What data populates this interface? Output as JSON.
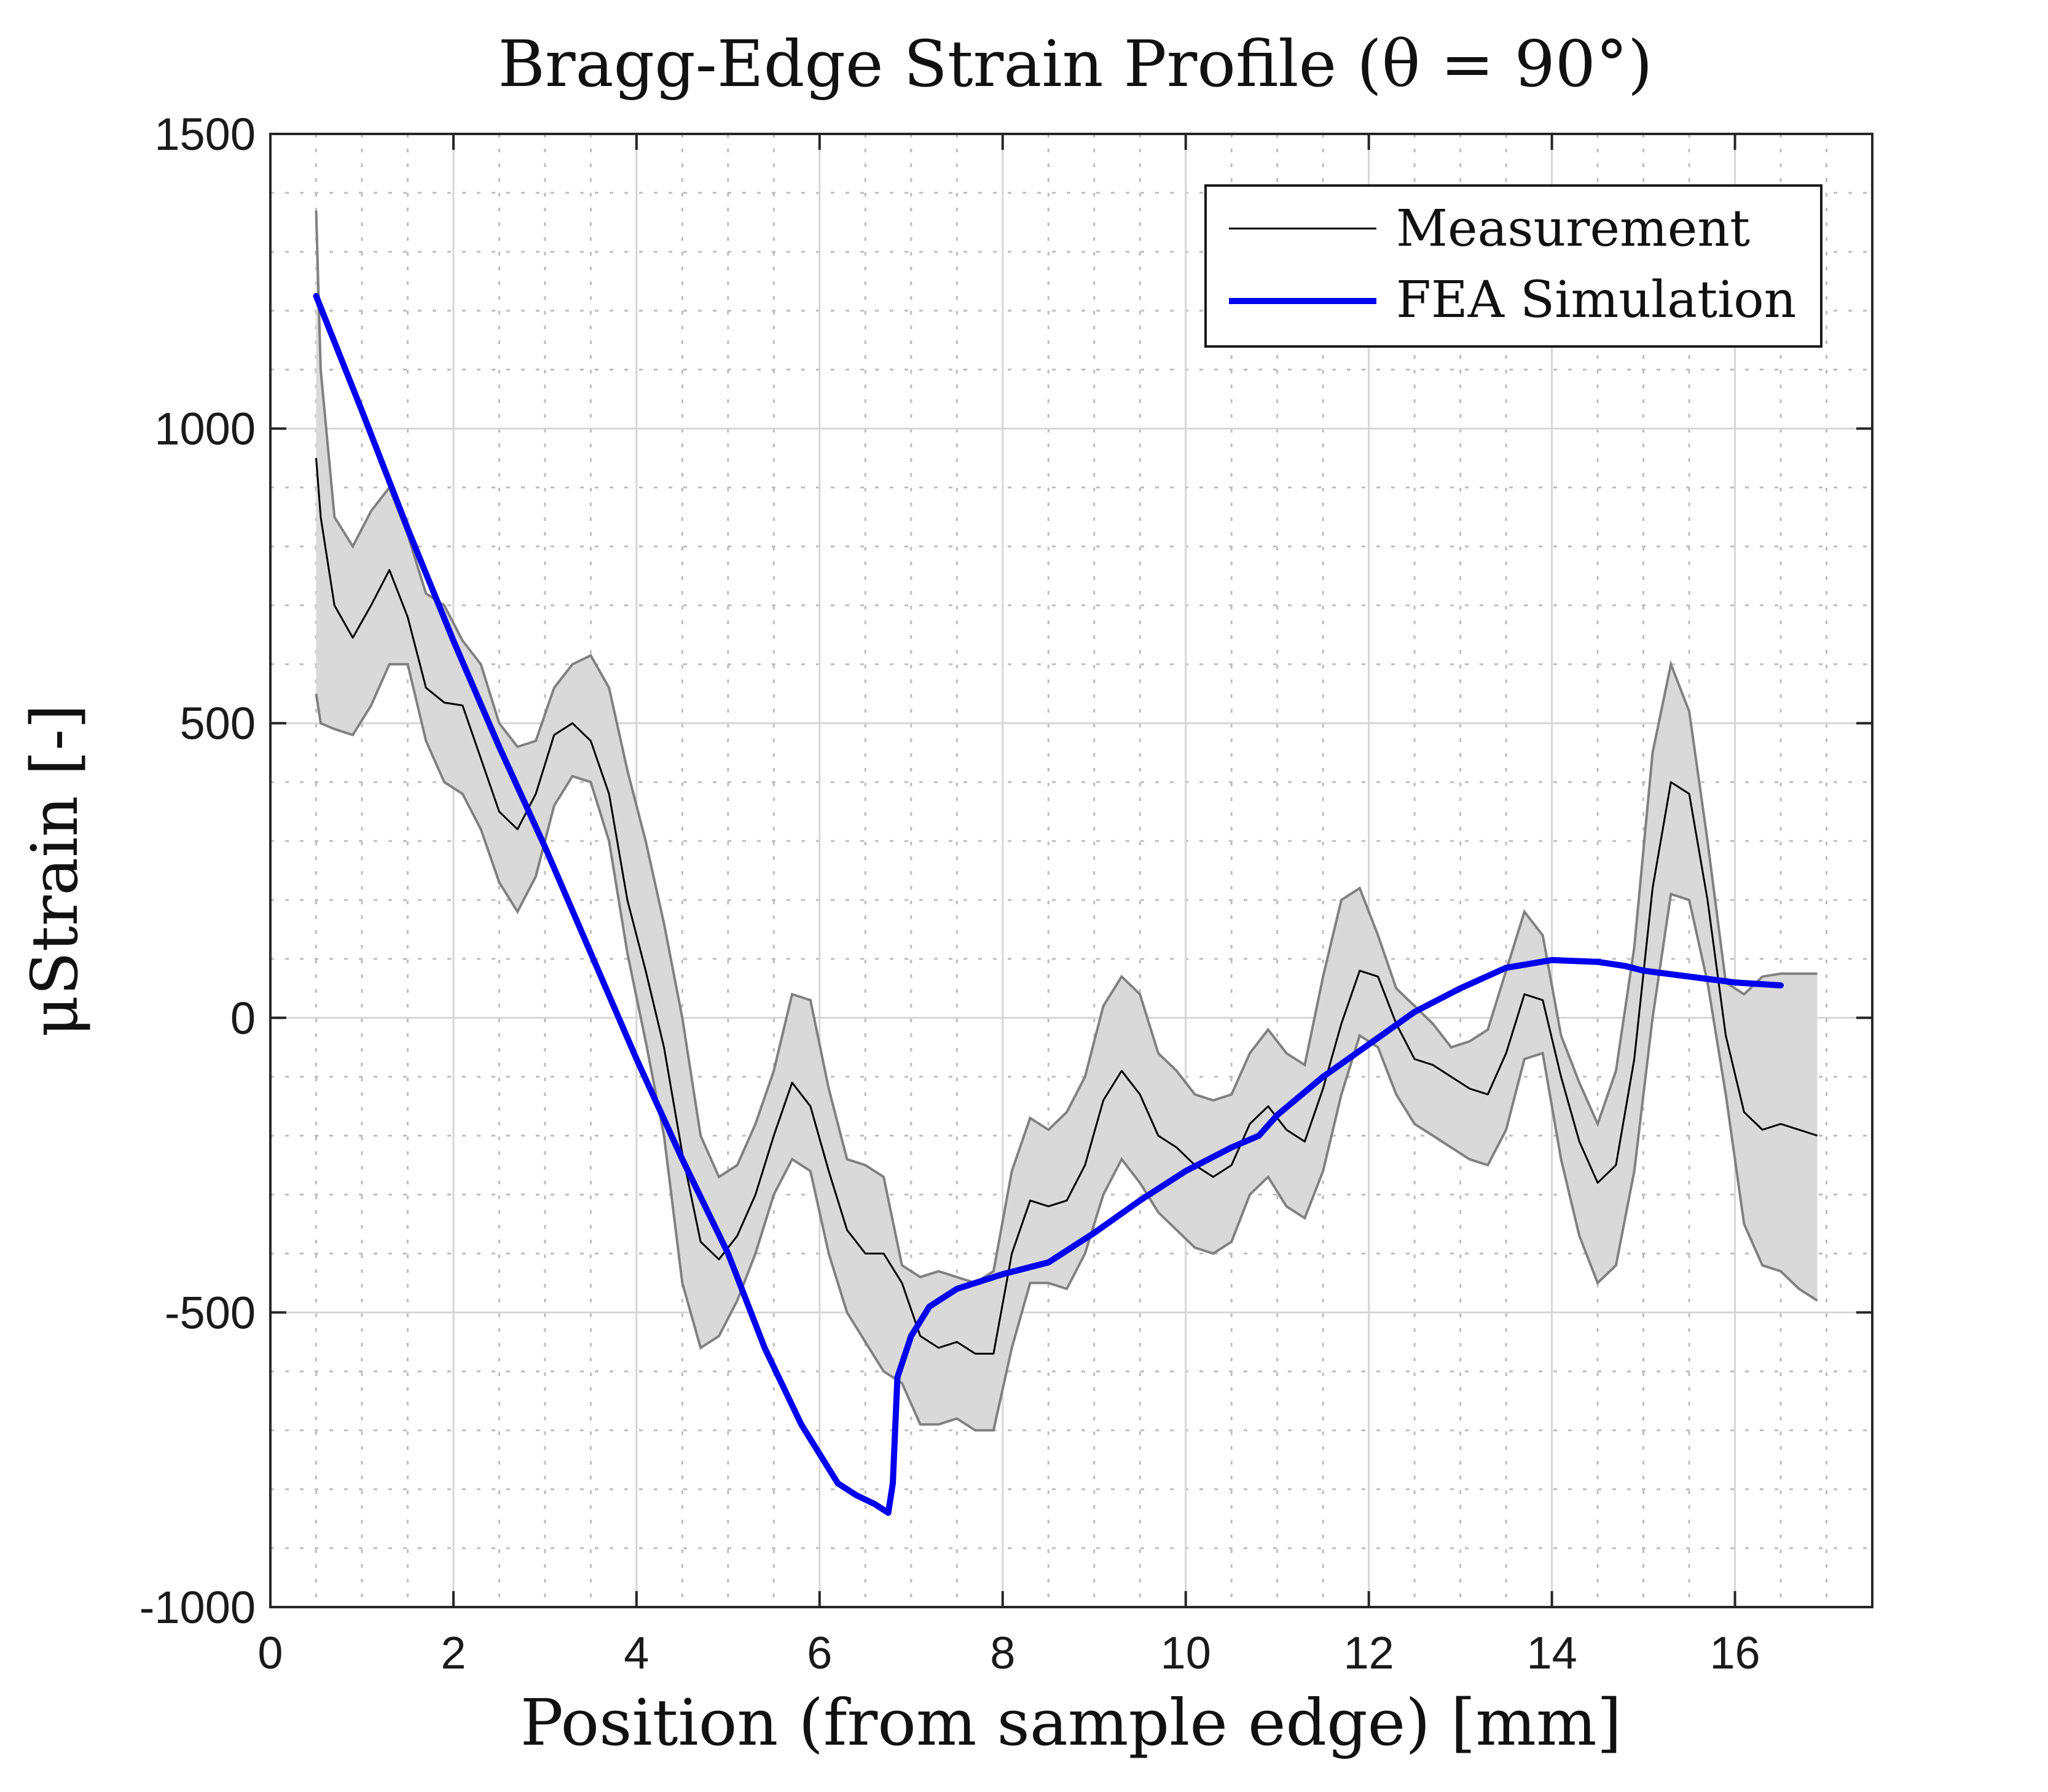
{
  "chart_data": {
    "type": "line",
    "title": "Bragg-Edge Strain Profile (θ = 90°)",
    "xlabel": "Position (from sample edge) [mm]",
    "ylabel": "μStrain [-]",
    "xlim": [
      0,
      17.5
    ],
    "ylim": [
      -1000,
      1500
    ],
    "xticks": [
      0,
      2,
      4,
      6,
      8,
      10,
      12,
      14,
      16
    ],
    "yticks": [
      -1000,
      -500,
      0,
      500,
      1000,
      1500
    ],
    "xtick_labels": [
      "0",
      "2",
      "4",
      "6",
      "8",
      "10",
      "12",
      "14",
      "16"
    ],
    "ytick_labels": [
      "-1000",
      "-500",
      "0",
      "500",
      "1000",
      "1500"
    ],
    "minor_xticks": [
      0.5,
      1,
      1.5,
      2.5,
      3,
      3.5,
      4.5,
      5,
      5.5,
      6.5,
      7,
      7.5,
      8.5,
      9,
      9.5,
      10.5,
      11,
      11.5,
      12.5,
      13,
      13.5,
      14.5,
      15,
      15.5,
      16.5,
      17
    ],
    "minor_yticks": [
      -900,
      -800,
      -700,
      -600,
      -400,
      -300,
      -200,
      -100,
      100,
      200,
      300,
      400,
      600,
      700,
      800,
      900,
      1100,
      1200,
      1300,
      1400
    ],
    "grid": true,
    "legend_position": "top-right",
    "colors": {
      "measurement": "#000000",
      "simulation": "#0000ee",
      "band_fill": "#d9d9d9",
      "band_edge": "#808080",
      "grid_major": "#d6d6d6",
      "grid_minor": "#bdbdbd",
      "axes": "#262626"
    },
    "series": [
      {
        "name": "Measurement",
        "x": [
          0.5,
          0.55,
          0.7,
          0.9,
          1.1,
          1.3,
          1.5,
          1.7,
          1.9,
          2.1,
          2.3,
          2.5,
          2.7,
          2.9,
          3.1,
          3.3,
          3.5,
          3.7,
          3.9,
          4.1,
          4.3,
          4.5,
          4.7,
          4.9,
          5.1,
          5.3,
          5.5,
          5.7,
          5.9,
          6.1,
          6.3,
          6.5,
          6.7,
          6.9,
          7.1,
          7.3,
          7.5,
          7.7,
          7.9,
          8.1,
          8.3,
          8.5,
          8.7,
          8.9,
          9.1,
          9.3,
          9.5,
          9.7,
          9.9,
          10.1,
          10.3,
          10.5,
          10.7,
          10.9,
          11.1,
          11.3,
          11.5,
          11.7,
          11.9,
          12.1,
          12.3,
          12.5,
          12.7,
          12.9,
          13.1,
          13.3,
          13.5,
          13.7,
          13.9,
          14.1,
          14.3,
          14.5,
          14.7,
          14.9,
          15.1,
          15.3,
          15.5,
          15.7,
          15.9,
          16.1,
          16.3,
          16.5,
          16.7,
          16.9
        ],
        "values": [
          950,
          850,
          700,
          645,
          700,
          760,
          680,
          560,
          535,
          530,
          440,
          350,
          320,
          380,
          480,
          500,
          470,
          380,
          200,
          80,
          -50,
          -230,
          -380,
          -410,
          -370,
          -300,
          -200,
          -110,
          -150,
          -260,
          -360,
          -400,
          -400,
          -450,
          -540,
          -560,
          -550,
          -570,
          -570,
          -400,
          -310,
          -320,
          -310,
          -250,
          -140,
          -90,
          -130,
          -200,
          -220,
          -250,
          -270,
          -250,
          -180,
          -150,
          -190,
          -210,
          -120,
          -10,
          80,
          70,
          -10,
          -70,
          -80,
          -100,
          -120,
          -130,
          -60,
          40,
          30,
          -100,
          -210,
          -280,
          -250,
          -70,
          220,
          400,
          380,
          200,
          -30,
          -160,
          -190,
          -180,
          -190,
          -200
        ],
        "band_upper": [
          1370,
          1100,
          850,
          800,
          860,
          900,
          820,
          720,
          700,
          640,
          600,
          500,
          460,
          470,
          560,
          600,
          615,
          560,
          420,
          300,
          160,
          0,
          -200,
          -270,
          -250,
          -180,
          -90,
          40,
          30,
          -120,
          -240,
          -250,
          -270,
          -420,
          -440,
          -430,
          -440,
          -450,
          -430,
          -260,
          -170,
          -190,
          -160,
          -100,
          20,
          70,
          40,
          -60,
          -90,
          -130,
          -140,
          -130,
          -60,
          -20,
          -60,
          -80,
          70,
          200,
          220,
          140,
          50,
          20,
          -10,
          -50,
          -40,
          -20,
          80,
          180,
          140,
          -30,
          -110,
          -180,
          -90,
          120,
          450,
          600,
          520,
          300,
          60,
          40,
          70,
          75,
          75,
          75
        ],
        "band_lower": [
          550,
          500,
          490,
          480,
          530,
          600,
          600,
          470,
          400,
          380,
          320,
          230,
          180,
          240,
          360,
          410,
          400,
          300,
          110,
          -40,
          -200,
          -450,
          -560,
          -540,
          -480,
          -400,
          -300,
          -240,
          -260,
          -400,
          -500,
          -550,
          -600,
          -620,
          -690,
          -690,
          -680,
          -700,
          -700,
          -560,
          -450,
          -450,
          -460,
          -400,
          -300,
          -240,
          -280,
          -330,
          -360,
          -390,
          -400,
          -380,
          -300,
          -270,
          -320,
          -340,
          -260,
          -130,
          -30,
          -50,
          -130,
          -180,
          -200,
          -220,
          -240,
          -250,
          -190,
          -70,
          -60,
          -240,
          -370,
          -450,
          -420,
          -260,
          0,
          210,
          200,
          60,
          -130,
          -350,
          -420,
          -430,
          -460,
          -480
        ]
      },
      {
        "name": "FEA Simulation",
        "x": [
          0.5,
          1,
          1.5,
          2,
          2.5,
          3,
          3.5,
          4,
          4.5,
          5,
          5.4,
          5.8,
          6.2,
          6.4,
          6.6,
          6.75,
          6.8,
          6.85,
          7,
          7.2,
          7.5,
          8,
          8.5,
          9,
          9.5,
          10,
          10.5,
          10.8,
          11,
          11.5,
          12,
          12.5,
          13,
          13.5,
          14,
          14.5,
          14.8,
          15,
          15.5,
          16,
          16.5
        ],
        "values": [
          1225,
          1030,
          830,
          640,
          460,
          290,
          110,
          -70,
          -240,
          -400,
          -560,
          -690,
          -790,
          -810,
          -825,
          -840,
          -790,
          -610,
          -540,
          -490,
          -460,
          -435,
          -415,
          -365,
          -310,
          -260,
          -220,
          -200,
          -165,
          -100,
          -45,
          10,
          50,
          85,
          98,
          95,
          88,
          80,
          70,
          60,
          55
        ]
      }
    ]
  }
}
